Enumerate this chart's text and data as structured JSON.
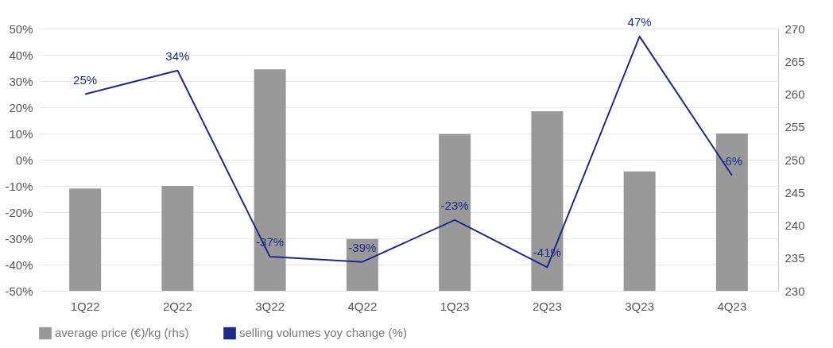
{
  "chart_data": {
    "type": "bar",
    "categories": [
      "1Q22",
      "2Q22",
      "3Q22",
      "4Q22",
      "1Q23",
      "2Q23",
      "3Q23",
      "4Q23"
    ],
    "series": [
      {
        "name": "average price (€)/kg (rhs)",
        "axis": "y2",
        "color": "#999999",
        "values": [
          245.6,
          246.0,
          263.8,
          237.9,
          253.9,
          257.4,
          248.2,
          254.0
        ]
      },
      {
        "name": "selling volumes yoy change (%)",
        "type": "line",
        "color": "#1c2a8c",
        "values": [
          25,
          34,
          -37,
          -39,
          -23,
          -41,
          47,
          -6
        ],
        "value_labels": [
          "25%",
          "34%",
          "-37%",
          "-39%",
          "-23%",
          "-41%",
          "47%",
          "-6%"
        ]
      }
    ],
    "ylim": [
      -50,
      50
    ],
    "yticks": [
      {
        "value": -50,
        "label": "-50%"
      },
      {
        "value": -40,
        "label": "-40%"
      },
      {
        "value": -30,
        "label": "-30%"
      },
      {
        "value": -20,
        "label": "-20%"
      },
      {
        "value": -10,
        "label": "-10%"
      },
      {
        "value": 0,
        "label": "0%"
      },
      {
        "value": 10,
        "label": "10%"
      },
      {
        "value": 20,
        "label": "20%"
      },
      {
        "value": 30,
        "label": "30%"
      },
      {
        "value": 40,
        "label": "40%"
      },
      {
        "value": 50,
        "label": "50%"
      }
    ],
    "y2lim": [
      230,
      270
    ],
    "y2ticks": [
      230,
      235,
      240,
      245,
      250,
      255,
      260,
      265,
      270
    ],
    "grid": "y",
    "legend": "bottom",
    "line_style": "solid"
  }
}
